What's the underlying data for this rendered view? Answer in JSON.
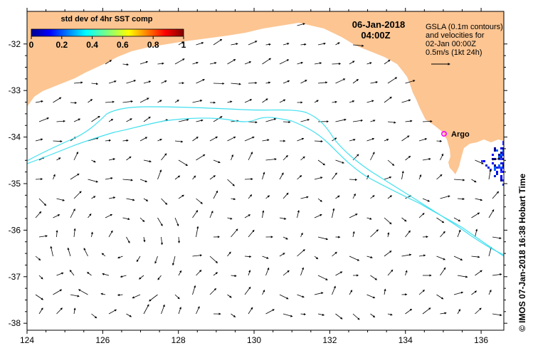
{
  "map": {
    "title": "std dev of 4hr SST comp",
    "date": "06-Jan-2018",
    "time": "04:00Z",
    "legend_lines": [
      "GSLA (0.1m contours)",
      "and velocities for",
      "02-Jan 00:00Z",
      "0.5m/s (1kt 24h)"
    ],
    "argo_label": "Argo",
    "credit": "© IMOS 07-Jan-2018 16:38 Hobart Time",
    "land_color": "#fcc592",
    "contour_color": "#40e0f0",
    "argo_color": "#ff00ff",
    "lon_ticks": [
      "124",
      "126",
      "128",
      "130",
      "132",
      "134",
      "136"
    ],
    "lat_ticks": [
      "-32",
      "-33",
      "-34",
      "-35",
      "-36",
      "-37",
      "-38"
    ],
    "colorbar": {
      "min": 0,
      "max": 1,
      "tick_labels": [
        "0",
        "0.2",
        "0.4",
        "0.6",
        "0.8",
        "1"
      ]
    }
  }
}
